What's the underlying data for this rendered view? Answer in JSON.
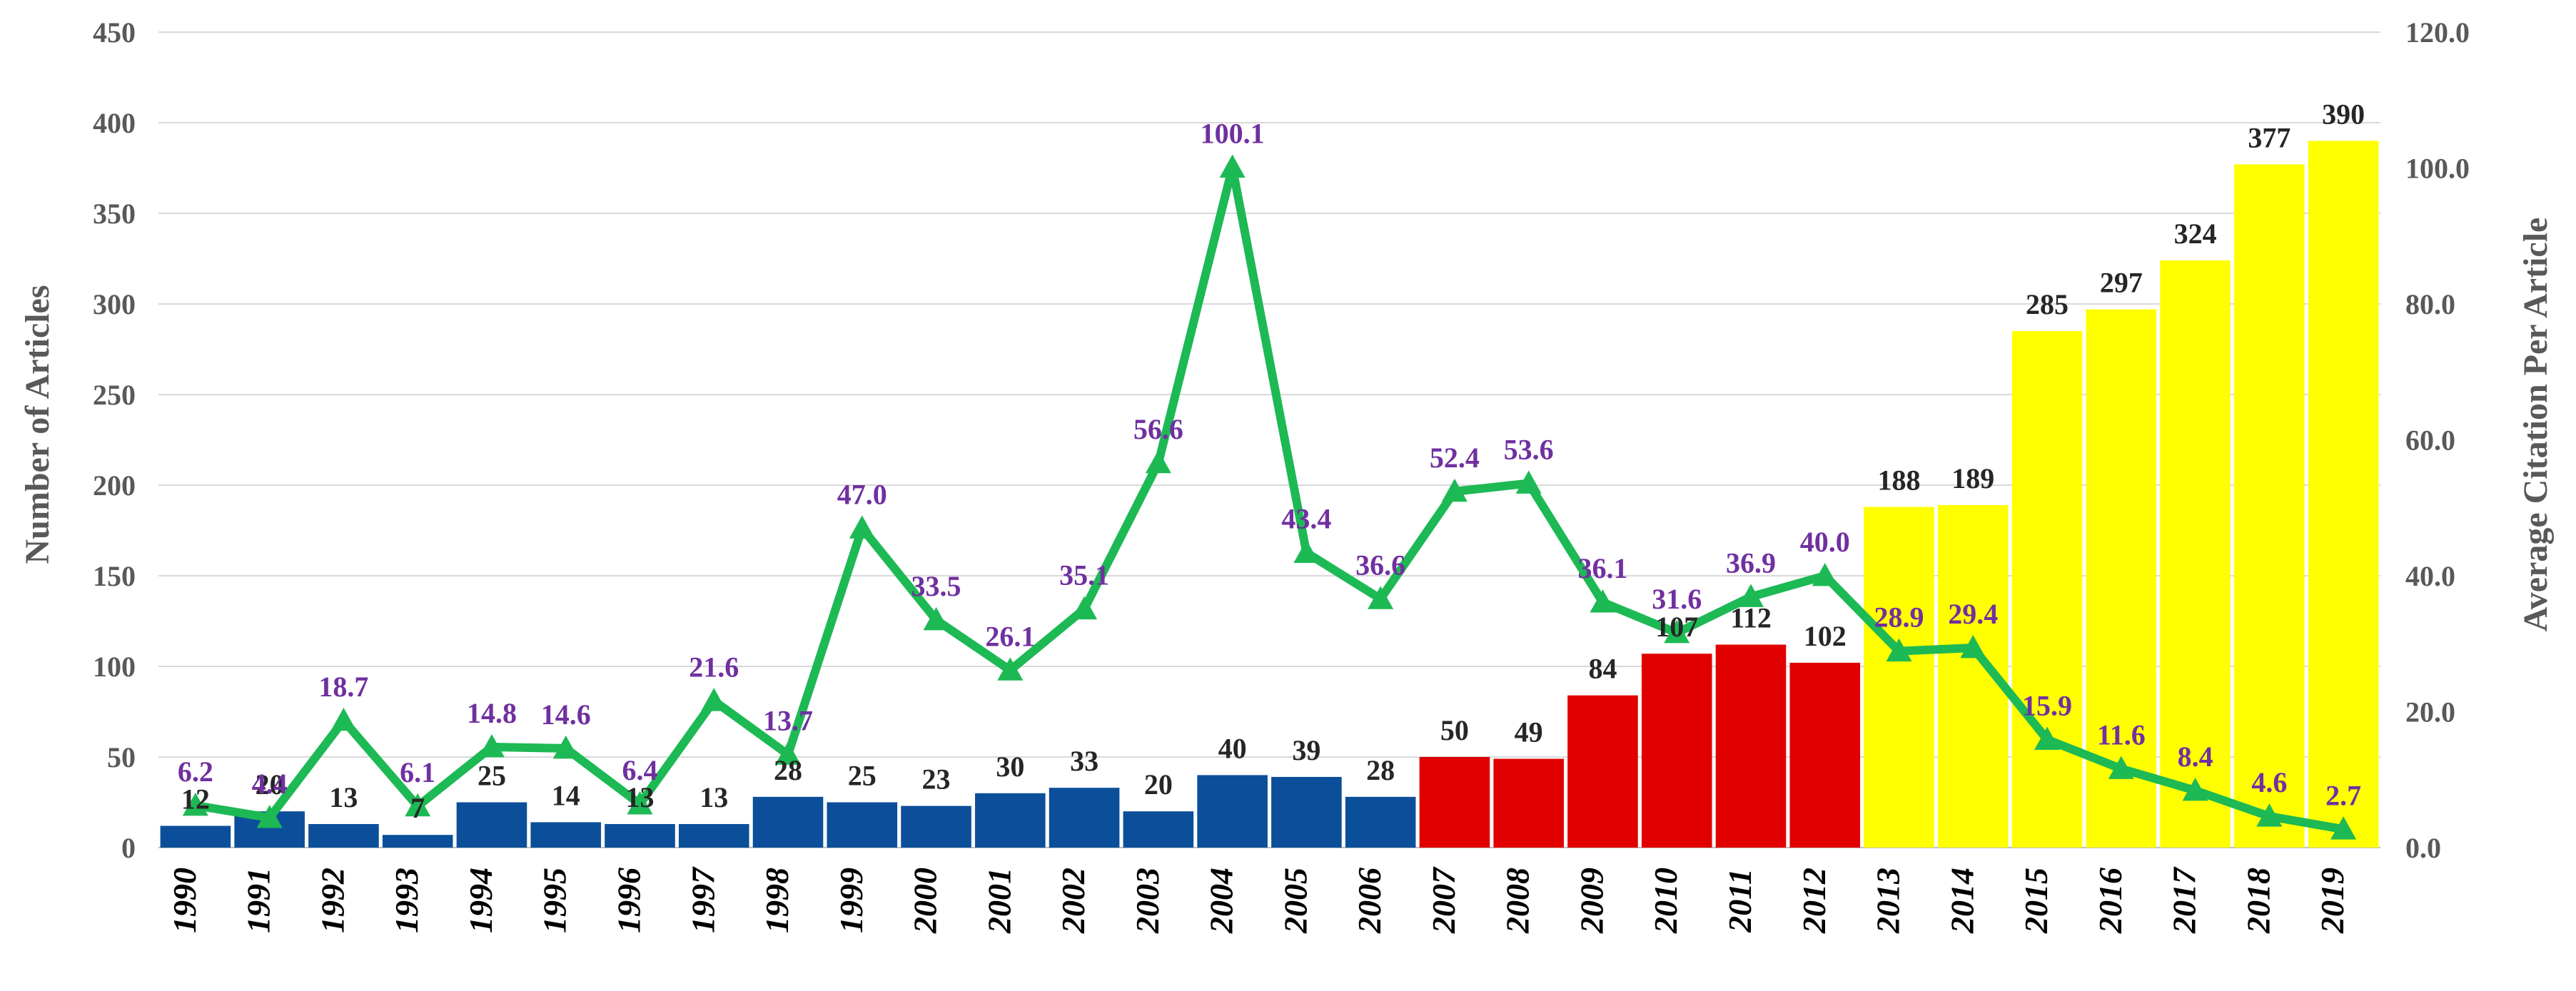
{
  "chart_data": {
    "type": "bar",
    "categories": [
      "1990",
      "1991",
      "1992",
      "1993",
      "1994",
      "1995",
      "1996",
      "1997",
      "1998",
      "1999",
      "2000",
      "2001",
      "2002",
      "2003",
      "2004",
      "2005",
      "2006",
      "2007",
      "2008",
      "2009",
      "2010",
      "2011",
      "2012",
      "2013",
      "2014",
      "2015",
      "2016",
      "2017",
      "2018",
      "2019"
    ],
    "series": [
      {
        "name": "Number of Articles",
        "type": "bar",
        "axis": "left",
        "values": [
          12,
          20,
          13,
          7,
          25,
          14,
          13,
          13,
          28,
          25,
          23,
          30,
          33,
          20,
          40,
          39,
          28,
          50,
          49,
          84,
          107,
          112,
          102,
          188,
          189,
          285,
          297,
          324,
          377,
          390
        ],
        "labels": [
          "12",
          "20",
          "13",
          "7",
          "25",
          "14",
          "13",
          "13",
          "28",
          "25",
          "23",
          "30",
          "33",
          "20",
          "40",
          "39",
          "28",
          "50",
          "49",
          "84",
          "107",
          "112",
          "102",
          "188",
          "189",
          "285",
          "297",
          "324",
          "377",
          "390"
        ],
        "period_colors": [
          {
            "from": "1990",
            "to": "2006",
            "color": "#0B4F9A"
          },
          {
            "from": "2007",
            "to": "2012",
            "color": "#E00000"
          },
          {
            "from": "2013",
            "to": "2019",
            "color": "#FFFF00"
          }
        ]
      },
      {
        "name": "Average Citation Per Article",
        "type": "line",
        "axis": "right",
        "color": "#1DB954",
        "values": [
          6.2,
          4.4,
          18.7,
          6.1,
          14.8,
          14.6,
          6.4,
          21.6,
          13.7,
          47.0,
          33.5,
          26.1,
          35.1,
          56.6,
          100.1,
          43.4,
          36.6,
          52.4,
          53.6,
          36.1,
          31.6,
          36.9,
          40.0,
          28.9,
          29.4,
          15.9,
          11.6,
          8.4,
          4.6,
          2.7
        ],
        "labels": [
          "6.2",
          "4.4",
          "18.7",
          "6.1",
          "14.8",
          "14.6",
          "6.4",
          "21.6",
          "13.7",
          "47.0",
          "33.5",
          "26.1",
          "35.1",
          "56.6",
          "100.1",
          "43.4",
          "36.6",
          "52.4",
          "53.6",
          "36.1",
          "31.6",
          "36.9",
          "40.0",
          "28.9",
          "29.4",
          "15.9",
          "11.6",
          "8.4",
          "4.6",
          "2.7"
        ]
      }
    ],
    "ylabel": "Number of Articles",
    "y2label": "Average Citation Per Article",
    "ylim": [
      0,
      450
    ],
    "yticks": [
      "0",
      "50",
      "100",
      "150",
      "200",
      "250",
      "300",
      "350",
      "400",
      "450"
    ],
    "y2lim": [
      0,
      120
    ],
    "y2ticks": [
      "0.0",
      "20.0",
      "40.0",
      "60.0",
      "80.0",
      "100.0",
      "120.0"
    ],
    "grid": true,
    "line_label_color": "#7030A0",
    "bar_label_color": "#262626"
  }
}
